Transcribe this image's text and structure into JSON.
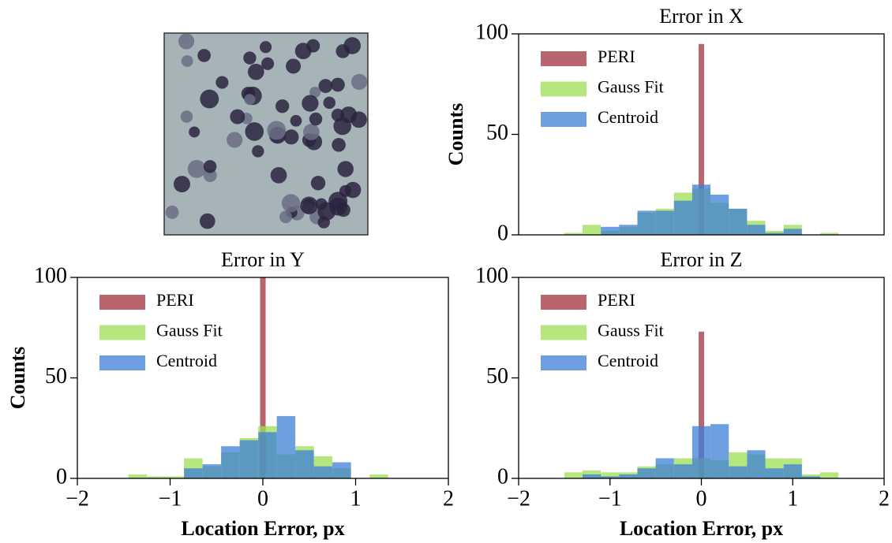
{
  "chart_data": [
    {
      "type": "histogram",
      "title": "Error in X",
      "ylabel": "Counts",
      "xlim": [
        -2,
        2
      ],
      "ylim": [
        0,
        100
      ],
      "yticks": [
        0,
        50,
        100
      ],
      "legend": "upper left",
      "series": [
        {
          "name": "PERI",
          "color": "#a0323e",
          "bins": [
            -0.03,
            0.03
          ],
          "values": [
            95
          ]
        },
        {
          "name": "Gauss Fit",
          "color": "#9edd55",
          "bins": [
            -1.5,
            -1.3,
            -1.1,
            -0.9,
            -0.7,
            -0.5,
            -0.3,
            -0.1,
            0.1,
            0.3,
            0.5,
            0.7,
            0.9,
            1.1,
            1.3,
            1.5
          ],
          "values": [
            1,
            5,
            2,
            4,
            11,
            13,
            21,
            23,
            16,
            13,
            7,
            2,
            5,
            0,
            1
          ]
        },
        {
          "name": "Centroid",
          "color": "#3e7fd6",
          "bins": [
            -1.1,
            -0.9,
            -0.7,
            -0.5,
            -0.3,
            -0.1,
            0.1,
            0.3,
            0.5,
            0.7,
            0.9,
            1.1
          ],
          "values": [
            4,
            5,
            12,
            12,
            17,
            25,
            20,
            13,
            5,
            1,
            3
          ]
        }
      ]
    },
    {
      "type": "histogram",
      "title": "Error in Y",
      "ylabel": "Counts",
      "xlabel": "Location Error, px",
      "xlim": [
        -2,
        2
      ],
      "ylim": [
        0,
        100
      ],
      "yticks": [
        0,
        50,
        100
      ],
      "xticks": [
        {
          "value": -2,
          "label": "−2"
        },
        {
          "value": -1,
          "label": "−1"
        },
        0,
        1,
        2
      ],
      "legend": "upper left",
      "series": [
        {
          "name": "PERI",
          "color": "#a0323e",
          "bins": [
            -0.03,
            0.03
          ],
          "values": [
            100
          ]
        },
        {
          "name": "Gauss Fit",
          "color": "#9edd55",
          "bins": [
            -1.45,
            -1.25,
            -1.05,
            -0.85,
            -0.65,
            -0.45,
            -0.25,
            -0.05,
            0.15,
            0.35,
            0.55,
            0.75,
            0.95,
            1.15,
            1.35
          ],
          "values": [
            2,
            1,
            1,
            10,
            6,
            13,
            20,
            26,
            12,
            16,
            11,
            5,
            0,
            2
          ]
        },
        {
          "name": "Centroid",
          "color": "#3e7fd6",
          "bins": [
            -0.85,
            -0.65,
            -0.45,
            -0.25,
            -0.05,
            0.15,
            0.35,
            0.55,
            0.75,
            0.95
          ],
          "values": [
            5,
            7,
            16,
            19,
            23,
            31,
            14,
            6,
            8
          ]
        }
      ]
    },
    {
      "type": "histogram",
      "title": "Error in Z",
      "xlabel": "Location Error, px",
      "xlim": [
        -2,
        2
      ],
      "ylim": [
        0,
        100
      ],
      "yticks": [
        0,
        50,
        100
      ],
      "xticks": [
        {
          "value": -2,
          "label": "−2"
        },
        {
          "value": -1,
          "label": "−1"
        },
        0,
        1,
        2
      ],
      "legend": "upper left",
      "series": [
        {
          "name": "PERI",
          "color": "#a0323e",
          "bins": [
            -0.03,
            0.03
          ],
          "values": [
            73
          ]
        },
        {
          "name": "Gauss Fit",
          "color": "#9edd55",
          "bins": [
            -1.5,
            -1.3,
            -1.1,
            -0.9,
            -0.7,
            -0.5,
            -0.3,
            -0.1,
            0.1,
            0.3,
            0.5,
            0.7,
            0.9,
            1.1,
            1.3,
            1.5
          ],
          "values": [
            3,
            4,
            3,
            3,
            6,
            7,
            10,
            10,
            9,
            13,
            12,
            10,
            10,
            2,
            3
          ]
        },
        {
          "name": "Centroid",
          "color": "#3e7fd6",
          "bins": [
            -1.3,
            -1.1,
            -0.9,
            -0.7,
            -0.5,
            -0.3,
            -0.1,
            0.1,
            0.3,
            0.5,
            0.7,
            0.9,
            1.1,
            1.3
          ],
          "values": [
            2,
            1,
            2,
            5,
            10,
            7,
            26,
            27,
            6,
            14,
            5,
            7,
            1
          ]
        }
      ]
    }
  ]
}
